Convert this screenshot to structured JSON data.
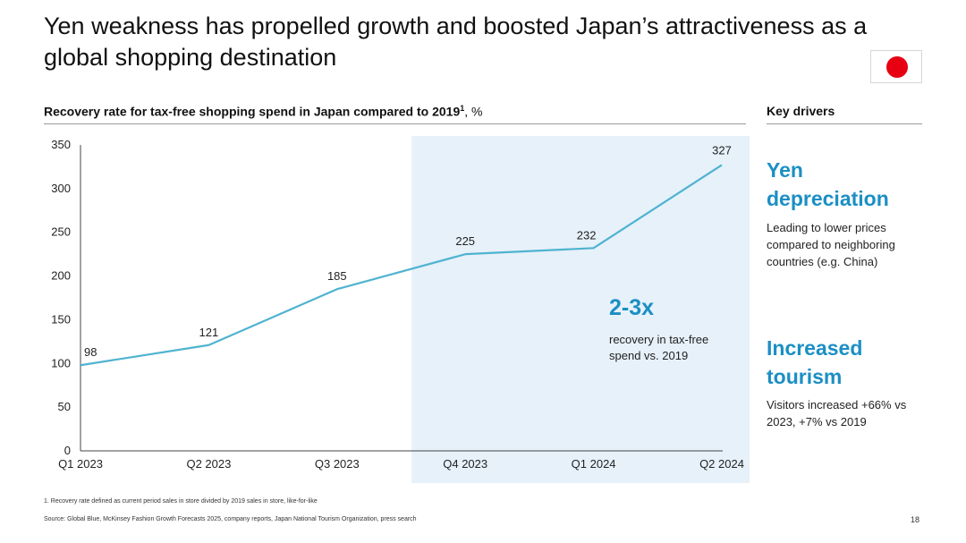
{
  "slide": {
    "title": "Yen weakness has propelled growth and boosted Japan’s attractiveness as a global shopping destination",
    "flag_icon": "japan-flag-icon",
    "page_number": "18"
  },
  "chart_heading": {
    "text": "Recovery rate for tax-free shopping spend in Japan compared to 2019",
    "superscript": "1",
    "unit": ", %"
  },
  "chart_data": {
    "type": "line",
    "title": "Recovery rate for tax-free shopping spend in Japan compared to 2019¹, %",
    "categories": [
      "Q1 2023",
      "Q2 2023",
      "Q3 2023",
      "Q4 2023",
      "Q1 2024",
      "Q2 2024"
    ],
    "values": [
      98,
      121,
      185,
      225,
      232,
      327
    ],
    "data_labels": [
      "98",
      "121",
      "185",
      "225",
      "232",
      "327"
    ],
    "xlabel": "",
    "ylabel": "%",
    "ylim": [
      0,
      350
    ],
    "y_ticks": [
      0,
      50,
      100,
      150,
      200,
      250,
      300,
      350
    ],
    "grid": false,
    "highlight_range": [
      "Q4 2023",
      "Q2 2024"
    ],
    "line_color": "#4fb3d0",
    "highlight_color": "#e6f1fa"
  },
  "callout": {
    "big": "2-3x",
    "text": "recovery in tax-free spend vs. 2019"
  },
  "drivers": {
    "heading": "Key drivers",
    "items": [
      {
        "title": "Yen depreciation",
        "desc": "Leading to lower prices compared to neighboring countries (e.g. China)"
      },
      {
        "title": "Increased tourism",
        "desc": "Visitors increased +66% vs 2023, +7% vs 2019"
      }
    ]
  },
  "footnote": "1.     Recovery rate defined as current period sales in store divided by 2019 sales in store, like-for-like",
  "source": "Source: Global Blue, McKinsey Fashion Growth Forecasts 2025, company reports, Japan National Tourism Organization, press search",
  "colors": {
    "accent": "#1b8fc4",
    "flag_red": "#e60012"
  }
}
